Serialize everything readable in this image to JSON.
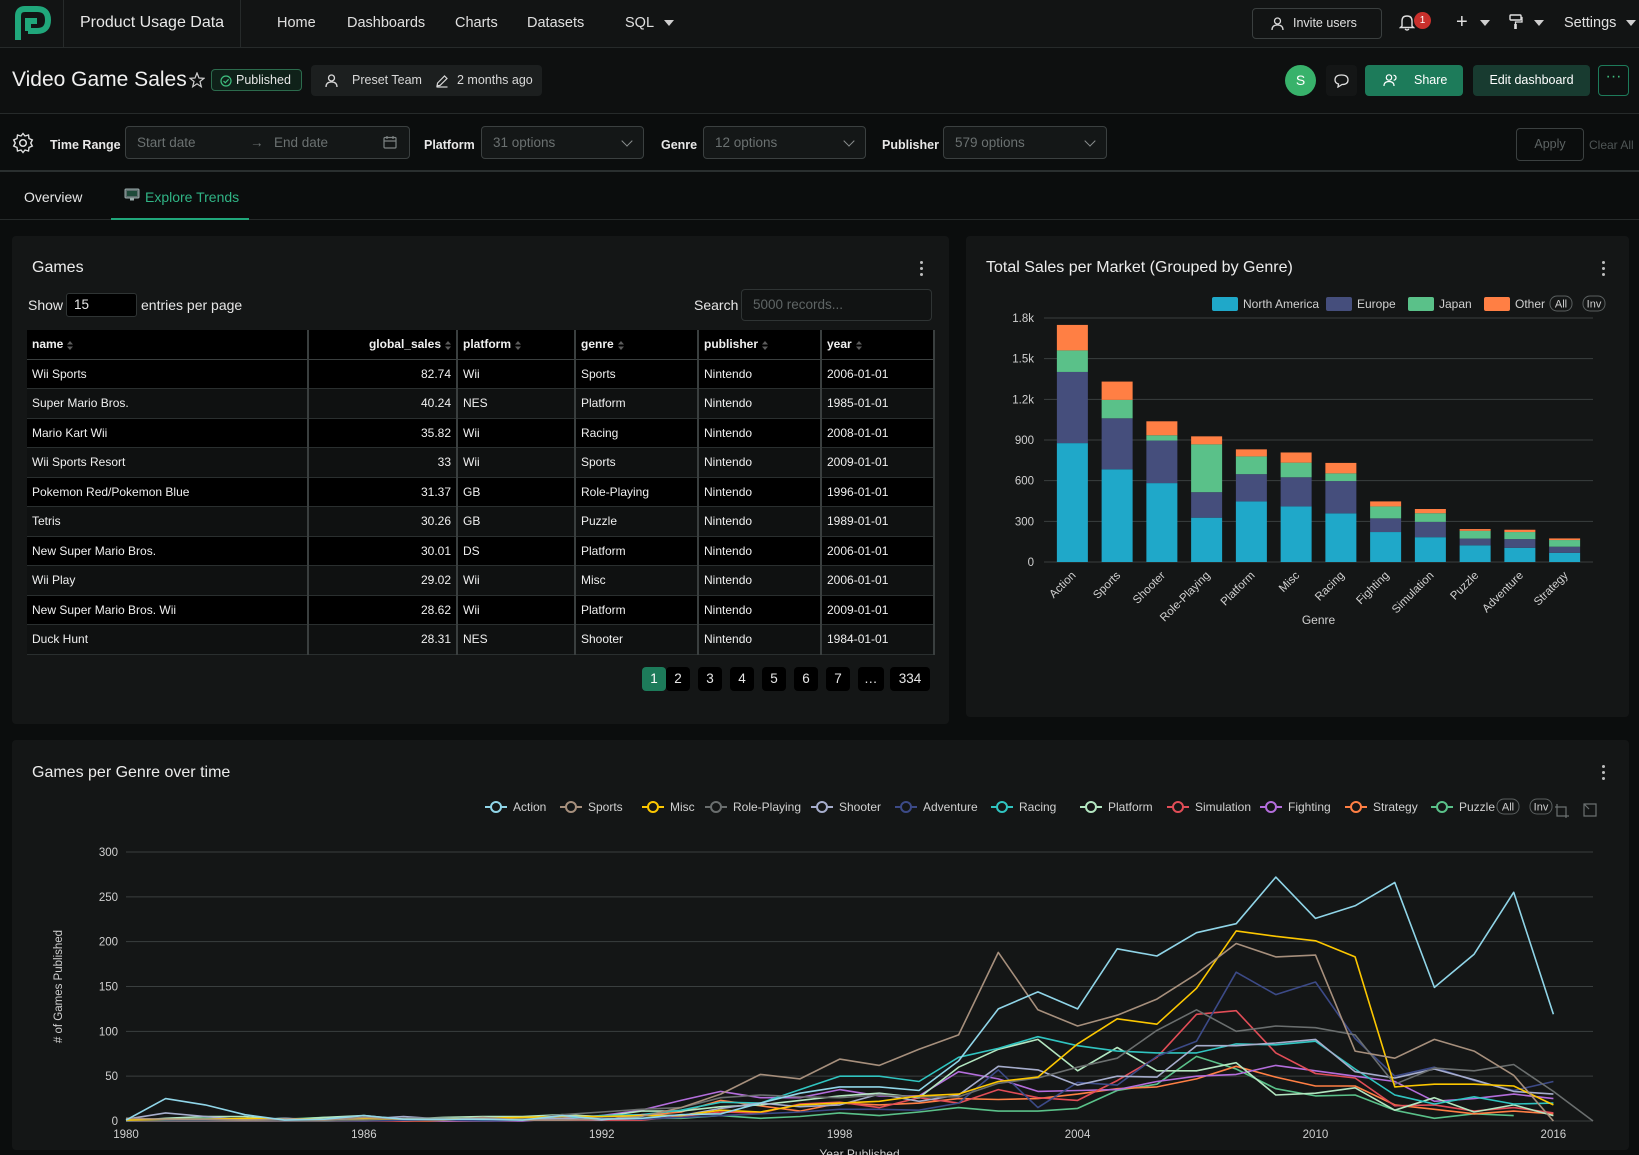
{
  "nav": {
    "app_title": "Product Usage Data",
    "links": [
      "Home",
      "Dashboards",
      "Charts",
      "Datasets",
      "SQL"
    ],
    "invite_label": "Invite users",
    "notification_count": "1",
    "settings_label": "Settings"
  },
  "header": {
    "title": "Video Game Sales",
    "status": "Published",
    "owner": "Preset Team",
    "modified": "2 months ago",
    "avatar_letter": "S",
    "share_label": "Share",
    "edit_label": "Edit dashboard"
  },
  "filters": {
    "time_range_label": "Time Range",
    "start_placeholder": "Start date",
    "end_placeholder": "End date",
    "platform_label": "Platform",
    "platform_value": "31 options",
    "genre_label": "Genre",
    "genre_value": "12 options",
    "publisher_label": "Publisher",
    "publisher_value": "579 options",
    "apply_label": "Apply",
    "clear_label": "Clear All"
  },
  "tabs": [
    {
      "label": "Overview"
    },
    {
      "label": "Explore Trends"
    }
  ],
  "games_table": {
    "title": "Games",
    "show_label": "Show",
    "page_size": "15",
    "entries_label": "entries per page",
    "search_label": "Search",
    "search_placeholder": "5000 records...",
    "columns": [
      "name",
      "global_sales",
      "platform",
      "genre",
      "publisher",
      "year"
    ],
    "rows": [
      [
        "Wii Sports",
        "82.74",
        "Wii",
        "Sports",
        "Nintendo",
        "2006-01-01"
      ],
      [
        "Super Mario Bros.",
        "40.24",
        "NES",
        "Platform",
        "Nintendo",
        "1985-01-01"
      ],
      [
        "Mario Kart Wii",
        "35.82",
        "Wii",
        "Racing",
        "Nintendo",
        "2008-01-01"
      ],
      [
        "Wii Sports Resort",
        "33",
        "Wii",
        "Sports",
        "Nintendo",
        "2009-01-01"
      ],
      [
        "Pokemon Red/Pokemon Blue",
        "31.37",
        "GB",
        "Role-Playing",
        "Nintendo",
        "1996-01-01"
      ],
      [
        "Tetris",
        "30.26",
        "GB",
        "Puzzle",
        "Nintendo",
        "1989-01-01"
      ],
      [
        "New Super Mario Bros.",
        "30.01",
        "DS",
        "Platform",
        "Nintendo",
        "2006-01-01"
      ],
      [
        "Wii Play",
        "29.02",
        "Wii",
        "Misc",
        "Nintendo",
        "2006-01-01"
      ],
      [
        "New Super Mario Bros. Wii",
        "28.62",
        "Wii",
        "Platform",
        "Nintendo",
        "2009-01-01"
      ],
      [
        "Duck Hunt",
        "28.31",
        "NES",
        "Shooter",
        "Nintendo",
        "1984-01-01"
      ]
    ],
    "pages": [
      "1",
      "2",
      "3",
      "4",
      "5",
      "6",
      "7",
      "…",
      "334"
    ]
  },
  "chart_data": [
    {
      "type": "bar",
      "stacked": true,
      "title": "Total Sales per Market (Grouped by Genre)",
      "xlabel": "Genre",
      "ylabel": "",
      "ylim": [
        0,
        1800
      ],
      "yticks": [
        "0",
        "300",
        "600",
        "900",
        "1.2k",
        "1.5k",
        "1.8k"
      ],
      "legend_position": "top-right",
      "legend_buttons": [
        "All",
        "Inv"
      ],
      "categories": [
        "Action",
        "Sports",
        "Shooter",
        "Role-Playing",
        "Platform",
        "Misc",
        "Racing",
        "Fighting",
        "Simulation",
        "Puzzle",
        "Adventure",
        "Strategy"
      ],
      "series": [
        {
          "name": "North America",
          "color": "#1fa8c9",
          "values": [
            877,
            684,
            582,
            327,
            447,
            410,
            359,
            221,
            183,
            123,
            105,
            68
          ]
        },
        {
          "name": "Europe",
          "color": "#454e7c",
          "values": [
            525,
            376,
            314,
            188,
            201,
            215,
            238,
            101,
            113,
            50,
            64,
            45
          ]
        },
        {
          "name": "Japan",
          "color": "#5ac189",
          "values": [
            159,
            136,
            39,
            353,
            131,
            108,
            57,
            88,
            64,
            57,
            52,
            49
          ]
        },
        {
          "name": "Other",
          "color": "#ff7f44",
          "values": [
            188,
            135,
            103,
            59,
            52,
            75,
            77,
            37,
            31,
            13,
            17,
            12
          ]
        }
      ]
    },
    {
      "type": "line",
      "title": "Games per Genre over time",
      "xlabel": "Year Published",
      "ylabel": "# of Games Published",
      "ylim": [
        0,
        300
      ],
      "xlim": [
        1980,
        2017
      ],
      "x_ticks": [
        "1980",
        "1986",
        "1992",
        "1998",
        "2004",
        "2010",
        "2016"
      ],
      "y_ticks": [
        "0",
        "50",
        "100",
        "150",
        "200",
        "250",
        "300"
      ],
      "legend_position": "top-right",
      "legend_buttons": [
        "All",
        "Inv"
      ],
      "x": [
        1980,
        1981,
        1982,
        1983,
        1984,
        1985,
        1986,
        1987,
        1988,
        1989,
        1990,
        1991,
        1992,
        1993,
        1994,
        1995,
        1996,
        1997,
        1998,
        1999,
        2000,
        2001,
        2002,
        2003,
        2004,
        2005,
        2006,
        2007,
        2008,
        2009,
        2010,
        2011,
        2012,
        2013,
        2014,
        2015,
        2016,
        2017
      ],
      "series": [
        {
          "name": "Action",
          "color": "#90d5e8",
          "values": [
            1,
            25,
            18,
            7,
            1,
            2,
            6,
            2,
            2,
            2,
            1,
            6,
            2,
            3,
            7,
            8,
            20,
            31,
            38,
            38,
            34,
            67,
            125,
            144,
            125,
            192,
            184,
            210,
            220,
            272,
            226,
            240,
            266,
            149,
            186,
            255,
            119,
            null
          ]
        },
        {
          "name": "Sports",
          "color": "#a68f7c",
          "values": [
            3,
            2,
            2,
            1,
            2,
            1,
            4,
            2,
            1,
            4,
            1,
            1,
            2,
            5,
            15,
            30,
            52,
            47,
            69,
            62,
            80,
            96,
            188,
            124,
            106,
            118,
            136,
            164,
            198,
            183,
            185,
            78,
            70,
            91,
            78,
            51,
            0,
            null
          ]
        },
        {
          "name": "Misc",
          "color": "#fcc700",
          "values": [
            1,
            2,
            2,
            3,
            2,
            2,
            3,
            2,
            2,
            3,
            4,
            5,
            5,
            6,
            6,
            12,
            10,
            18,
            20,
            22,
            28,
            30,
            44,
            49,
            86,
            114,
            108,
            148,
            212,
            206,
            201,
            183,
            38,
            41,
            41,
            39,
            18,
            null
          ]
        },
        {
          "name": "Role-Playing",
          "color": "#6a6e6e",
          "values": [
            0,
            0,
            0,
            0,
            0,
            0,
            1,
            3,
            3,
            2,
            2,
            7,
            10,
            13,
            15,
            26,
            29,
            27,
            26,
            29,
            27,
            27,
            42,
            48,
            60,
            70,
            101,
            124,
            100,
            106,
            104,
            96,
            41,
            59,
            56,
            63,
            33,
            0
          ]
        },
        {
          "name": "Shooter",
          "color": "#a6adcc",
          "values": [
            2,
            9,
            5,
            1,
            3,
            1,
            2,
            5,
            2,
            3,
            2,
            3,
            1,
            7,
            6,
            14,
            20,
            16,
            18,
            30,
            22,
            29,
            61,
            57,
            40,
            50,
            49,
            84,
            84,
            87,
            91,
            55,
            48,
            58,
            46,
            33,
            30,
            null
          ]
        },
        {
          "name": "Adventure",
          "color": "#3c4a87",
          "values": [
            0,
            0,
            1,
            1,
            0,
            0,
            0,
            1,
            1,
            0,
            1,
            2,
            3,
            2,
            4,
            6,
            8,
            10,
            13,
            13,
            12,
            20,
            57,
            15,
            43,
            40,
            72,
            89,
            166,
            141,
            155,
            92,
            50,
            60,
            45,
            34,
            44,
            null
          ]
        },
        {
          "name": "Racing",
          "color": "#30c4c0",
          "values": [
            0,
            1,
            2,
            1,
            3,
            0,
            1,
            1,
            1,
            1,
            2,
            2,
            6,
            7,
            12,
            21,
            20,
            35,
            50,
            50,
            44,
            71,
            81,
            94,
            84,
            78,
            76,
            76,
            86,
            85,
            89,
            58,
            29,
            19,
            27,
            19,
            20,
            null
          ]
        },
        {
          "name": "Platform",
          "color": "#b3e6c0",
          "values": [
            0,
            3,
            5,
            5,
            1,
            4,
            6,
            2,
            4,
            5,
            5,
            7,
            5,
            11,
            11,
            16,
            18,
            23,
            28,
            31,
            26,
            60,
            80,
            91,
            56,
            82,
            56,
            56,
            65,
            29,
            31,
            37,
            12,
            26,
            10,
            18,
            6,
            null
          ]
        },
        {
          "name": "Simulation",
          "color": "#e14d57",
          "values": [
            0,
            0,
            1,
            1,
            0,
            0,
            0,
            0,
            1,
            0,
            1,
            1,
            1,
            1,
            5,
            10,
            9,
            19,
            21,
            15,
            26,
            20,
            35,
            26,
            23,
            45,
            71,
            119,
            123,
            76,
            53,
            48,
            17,
            18,
            11,
            15,
            9,
            null
          ]
        },
        {
          "name": "Fighting",
          "color": "#b36ddb",
          "values": [
            1,
            0,
            0,
            0,
            0,
            1,
            0,
            2,
            0,
            0,
            0,
            3,
            6,
            12,
            23,
            33,
            26,
            26,
            35,
            28,
            28,
            55,
            47,
            33,
            34,
            35,
            44,
            50,
            52,
            62,
            56,
            50,
            44,
            22,
            25,
            30,
            25,
            null
          ]
        },
        {
          "name": "Strategy",
          "color": "#ff7f44",
          "values": [
            0,
            0,
            0,
            0,
            0,
            0,
            1,
            0,
            0,
            0,
            1,
            3,
            5,
            6,
            10,
            23,
            17,
            11,
            20,
            18,
            20,
            25,
            24,
            25,
            30,
            36,
            38,
            47,
            61,
            49,
            39,
            39,
            18,
            13,
            8,
            11,
            8,
            null
          ]
        },
        {
          "name": "Puzzle",
          "color": "#5ac189",
          "values": [
            0,
            2,
            3,
            2,
            2,
            4,
            3,
            0,
            1,
            4,
            3,
            3,
            3,
            3,
            3,
            6,
            3,
            5,
            9,
            6,
            10,
            15,
            11,
            11,
            14,
            34,
            41,
            72,
            58,
            36,
            28,
            29,
            12,
            3,
            8,
            6,
            null,
            null
          ]
        }
      ]
    }
  ]
}
